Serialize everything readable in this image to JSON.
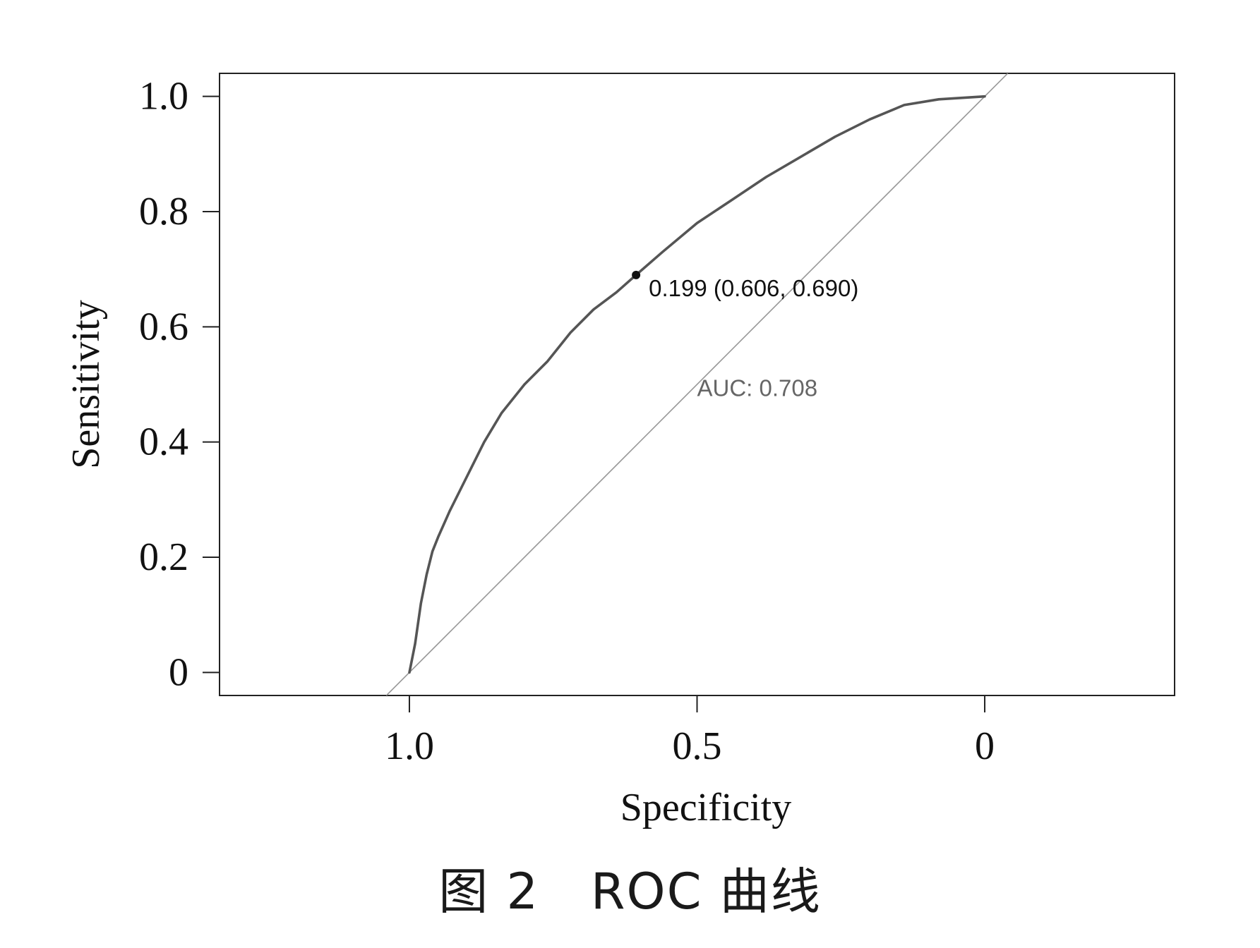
{
  "chart_data": {
    "type": "line",
    "title": "",
    "xlabel": "Specificity",
    "ylabel": "Sensitivity",
    "x_reversed": true,
    "xlim": [
      1.33,
      -0.33
    ],
    "ylim": [
      -0.04,
      1.04
    ],
    "x_ticks": [
      1.0,
      0.5,
      0
    ],
    "x_tick_labels": [
      "1.0",
      "0.5",
      "0"
    ],
    "y_ticks": [
      0,
      0.2,
      0.4,
      0.6,
      0.8,
      1.0
    ],
    "y_tick_labels": [
      "0",
      "0.2",
      "0.4",
      "0.6",
      "0.8",
      "1.0"
    ],
    "grid": false,
    "series": [
      {
        "role": "roc-curve",
        "color": "#555555",
        "points": [
          [
            1.0,
            0.0
          ],
          [
            0.99,
            0.05
          ],
          [
            0.98,
            0.12
          ],
          [
            0.97,
            0.17
          ],
          [
            0.96,
            0.21
          ],
          [
            0.95,
            0.235
          ],
          [
            0.93,
            0.28
          ],
          [
            0.91,
            0.32
          ],
          [
            0.89,
            0.36
          ],
          [
            0.87,
            0.4
          ],
          [
            0.84,
            0.45
          ],
          [
            0.8,
            0.5
          ],
          [
            0.76,
            0.54
          ],
          [
            0.72,
            0.59
          ],
          [
            0.68,
            0.63
          ],
          [
            0.64,
            0.66
          ],
          [
            0.606,
            0.69
          ],
          [
            0.56,
            0.73
          ],
          [
            0.5,
            0.78
          ],
          [
            0.44,
            0.82
          ],
          [
            0.38,
            0.86
          ],
          [
            0.32,
            0.895
          ],
          [
            0.26,
            0.93
          ],
          [
            0.2,
            0.96
          ],
          [
            0.14,
            0.985
          ],
          [
            0.08,
            0.995
          ],
          [
            0.0,
            1.0
          ]
        ]
      },
      {
        "role": "reference-diagonal",
        "color": "#999999",
        "points": [
          [
            1.04,
            -0.04
          ],
          [
            -0.04,
            1.04
          ]
        ]
      }
    ],
    "point": {
      "x": 0.606,
      "y": 0.69,
      "threshold": 0.199,
      "label": "0.199 (0.606, 0.690)"
    },
    "annotations": {
      "auc_text": "AUC: 0.708"
    }
  },
  "caption": "图 2   ROC 曲线"
}
